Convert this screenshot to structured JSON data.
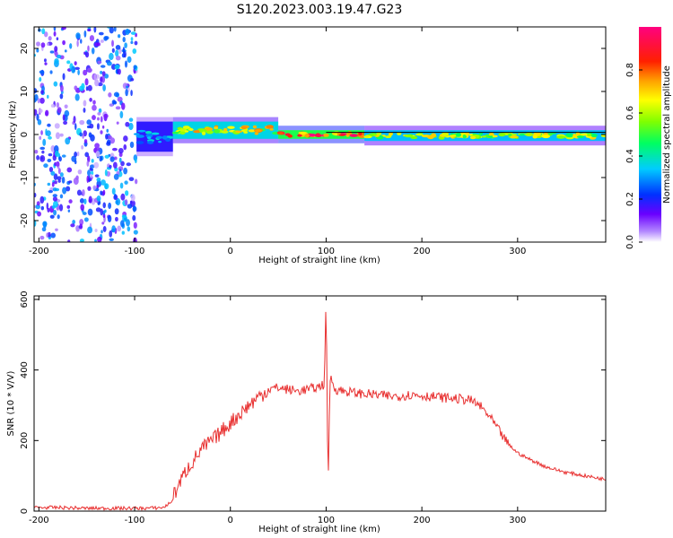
{
  "title": "S120.2023.003.19.47.G23",
  "colors": {
    "snr_line": "#e83030",
    "plot_border": "#000000",
    "ridge_line": "#000000"
  },
  "chart_data": [
    {
      "type": "heatmap",
      "name": "spectrogram",
      "xlabel": "Height of straight line (km)",
      "ylabel": "Frequency (Hz)",
      "xlim": [
        -205,
        392
      ],
      "ylim": [
        -25,
        25
      ],
      "xticks": [
        -200,
        -100,
        0,
        100,
        200,
        300
      ],
      "yticks": [
        -20,
        -10,
        0,
        10,
        20
      ],
      "colorbar": {
        "label": "Normalized spectral amplitude",
        "range": [
          0,
          1
        ],
        "ticks": [
          "0.0",
          "0.2",
          "0.4",
          "0.6",
          "0.8"
        ],
        "colormap": "rainbow (white-violet-blue-cyan-green-yellow-red-magenta)"
      },
      "regions": [
        {
          "x": [
            -205,
            -98
          ],
          "description": "broadband noise, violet speckle",
          "level": 0.1
        },
        {
          "x": [
            -98,
            -60
          ],
          "f_hz": [
            -4,
            3
          ],
          "level": 0.3
        },
        {
          "x": [
            -60,
            50
          ],
          "f_hz": [
            -1,
            3
          ],
          "level": 0.6
        },
        {
          "x": [
            50,
            140
          ],
          "f_hz": [
            -1,
            1
          ],
          "level": 0.8
        },
        {
          "x": [
            140,
            392
          ],
          "f_hz": [
            -1.5,
            1
          ],
          "level": 0.55
        }
      ],
      "ridge_y_hz": 0.5,
      "grid": false
    },
    {
      "type": "line",
      "name": "snr",
      "xlabel": "Height of straight line (km)",
      "ylabel": "SNR (10 * V/V)",
      "xlim": [
        -205,
        392
      ],
      "ylim": [
        0,
        610
      ],
      "xticks": [
        -200,
        -100,
        0,
        100,
        200,
        300
      ],
      "yticks": [
        0,
        200,
        400,
        600
      ],
      "grid": false,
      "series": [
        {
          "x": [
            -205,
            -180,
            -150,
            -120,
            -90,
            -70,
            -62,
            -55,
            -45,
            -30,
            -15,
            0,
            15,
            30,
            40,
            50,
            60,
            70,
            80,
            90,
            98,
            100,
            102,
            104,
            110,
            130,
            150,
            170,
            190,
            210,
            230,
            250,
            260,
            270,
            280,
            290,
            300,
            310,
            330,
            350,
            370,
            392
          ],
          "values": [
            10,
            10,
            8,
            8,
            8,
            10,
            25,
            70,
            120,
            175,
            210,
            250,
            290,
            325,
            345,
            350,
            345,
            340,
            345,
            350,
            360,
            600,
            50,
            380,
            345,
            335,
            330,
            325,
            330,
            325,
            320,
            315,
            300,
            270,
            230,
            190,
            165,
            150,
            125,
            110,
            100,
            90
          ]
        }
      ]
    }
  ]
}
